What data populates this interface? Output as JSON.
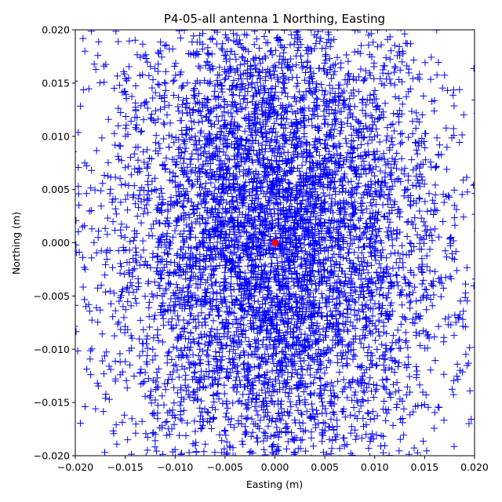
{
  "chart_data": {
    "type": "scatter",
    "title": "P4-05-all antenna 1 Northing, Easting",
    "xlabel": "Easting (m)",
    "ylabel": "Northing (m)",
    "xlim": [
      -0.02,
      0.02
    ],
    "ylim": [
      -0.02,
      0.02
    ],
    "xticks": [
      "−0.020",
      "−0.015",
      "−0.010",
      "−0.005",
      "0.000",
      "0.005",
      "0.010",
      "0.015",
      "0.020"
    ],
    "yticks": [
      "−0.020",
      "−0.015",
      "−0.010",
      "−0.005",
      "0.000",
      "0.005",
      "0.010",
      "0.015",
      "0.020"
    ],
    "xtick_values": [
      -0.02,
      -0.015,
      -0.01,
      -0.005,
      0,
      0.005,
      0.01,
      0.015,
      0.02
    ],
    "ytick_values": [
      -0.02,
      -0.015,
      -0.01,
      -0.005,
      0,
      0.005,
      0.01,
      0.015,
      0.02
    ],
    "grid": false,
    "series": [
      {
        "marker": "plus",
        "color": "#0000ff",
        "x_center": 0.0,
        "y_center": 0.0,
        "x_std": 0.0085,
        "y_std": 0.012,
        "approx_points": 9000
      },
      {
        "marker": "circle",
        "color": "#ff0000",
        "x": [
          0.0
        ],
        "y": [
          0.0
        ]
      }
    ]
  }
}
